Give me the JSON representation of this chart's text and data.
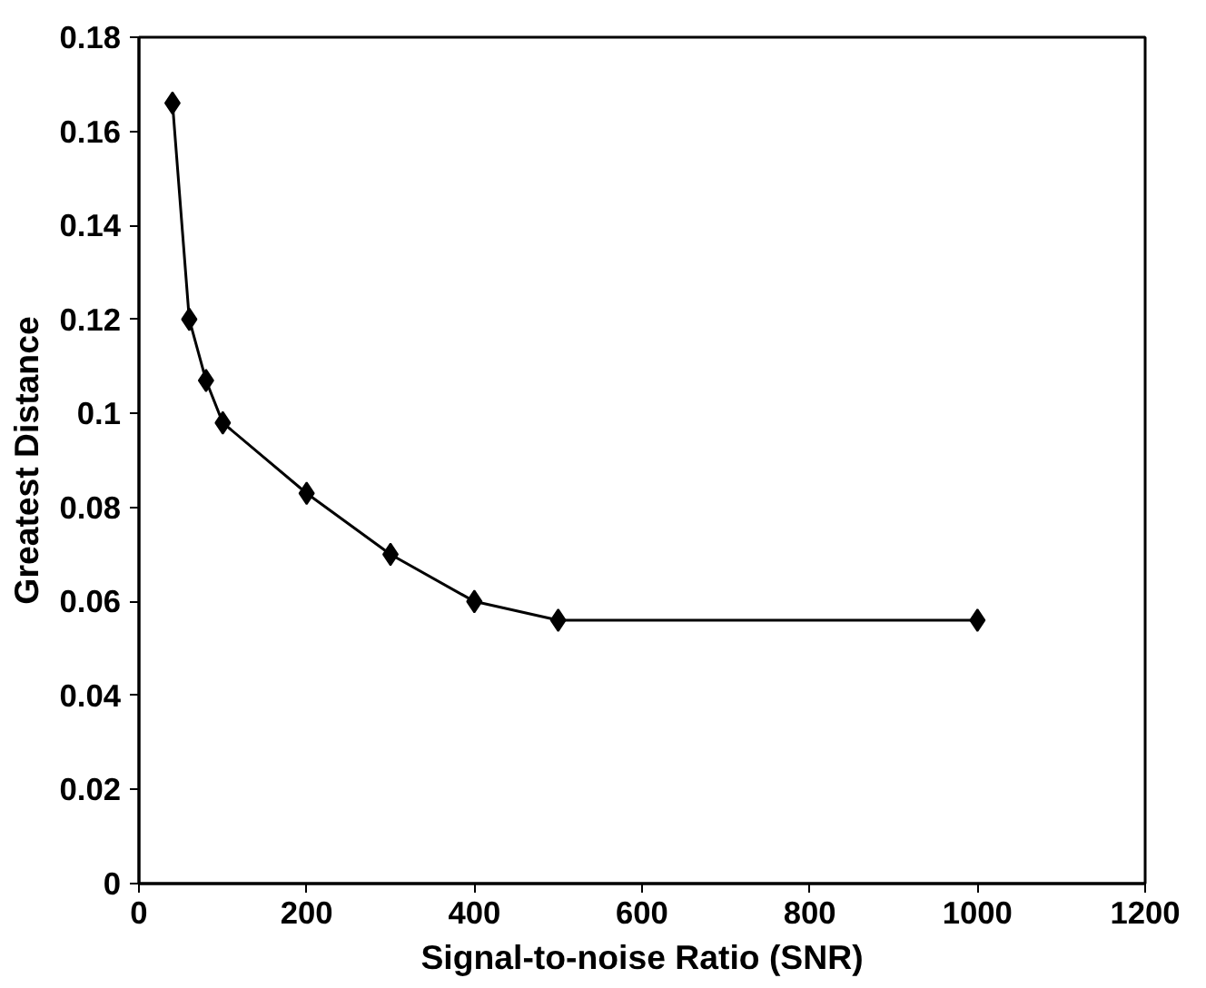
{
  "chart_data": {
    "type": "line",
    "xlabel": "Signal-to-noise Ratio (SNR)",
    "ylabel": "Greatest Distance",
    "x": [
      40,
      60,
      80,
      100,
      200,
      300,
      400,
      500,
      1000
    ],
    "series": [
      {
        "color": "#000000",
        "values": [
          0.166,
          0.12,
          0.107,
          0.098,
          0.083,
          0.07,
          0.06,
          0.056,
          0.056
        ]
      }
    ],
    "xlim": [
      0,
      1200
    ],
    "xticks": [
      0,
      200,
      400,
      600,
      800,
      1000,
      1200
    ],
    "ylim": [
      0,
      0.18
    ],
    "yticks": [
      0,
      0.02,
      0.04,
      0.06,
      0.08,
      0.1,
      0.12,
      0.14,
      0.16,
      0.18
    ],
    "grid": false,
    "marker": "diamond",
    "line_style": "solid"
  }
}
